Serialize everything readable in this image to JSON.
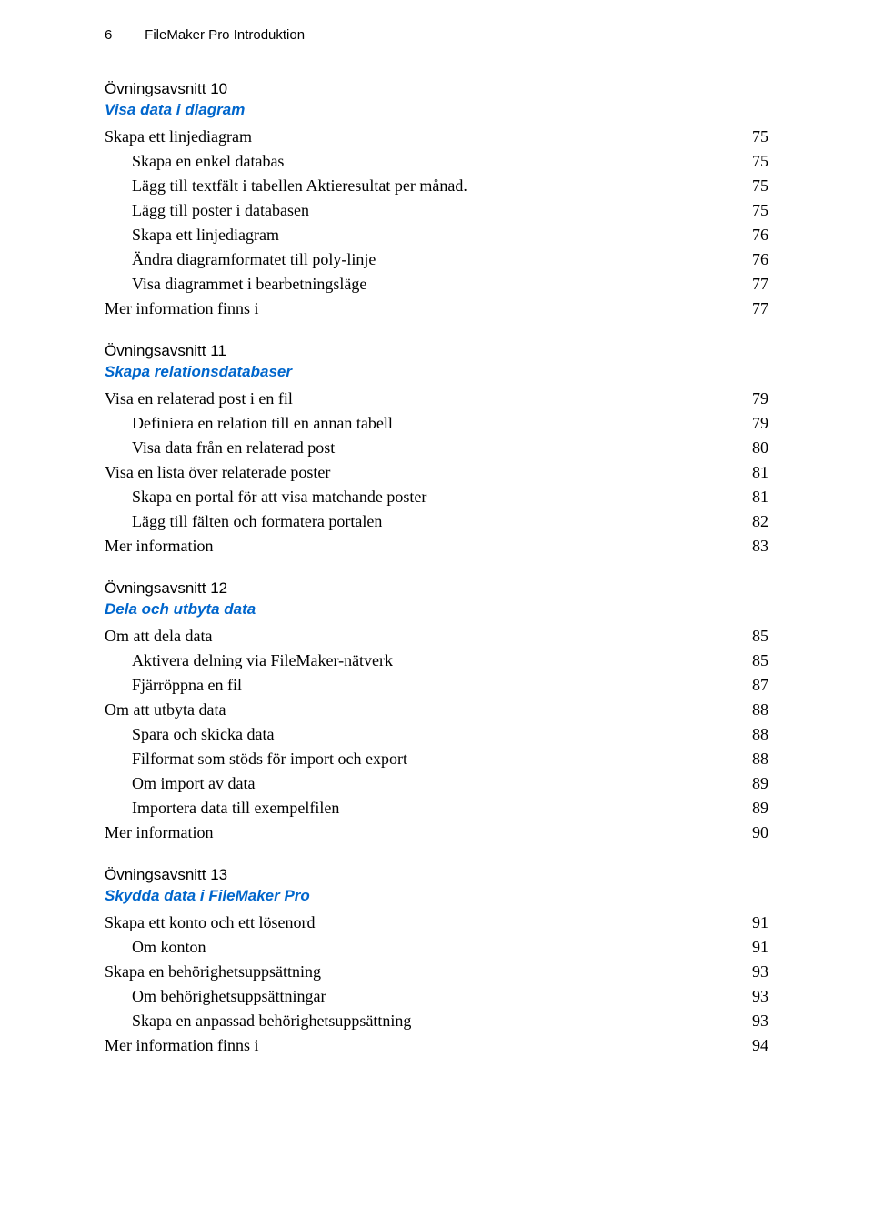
{
  "header": {
    "page_number": "6",
    "title": "FileMaker Pro Introduktion"
  },
  "sections": [
    {
      "title": "Övningsavsnitt 10",
      "link": "Visa data i diagram",
      "items": [
        {
          "label": "Skapa ett linjediagram",
          "page": "75",
          "indent": 0
        },
        {
          "label": "Skapa en enkel databas",
          "page": "75",
          "indent": 1
        },
        {
          "label": "Lägg till textfält i tabellen Aktieresultat per månad.",
          "page": "75",
          "indent": 1
        },
        {
          "label": "Lägg till poster i databasen",
          "page": "75",
          "indent": 1
        },
        {
          "label": "Skapa ett linjediagram",
          "page": "76",
          "indent": 1
        },
        {
          "label": "Ändra diagramformatet till poly-linje",
          "page": "76",
          "indent": 1
        },
        {
          "label": "Visa diagrammet i bearbetningsläge",
          "page": "77",
          "indent": 1
        },
        {
          "label": "Mer information finns i",
          "page": "77",
          "indent": 0
        }
      ]
    },
    {
      "title": "Övningsavsnitt 11",
      "link": "Skapa relationsdatabaser",
      "items": [
        {
          "label": "Visa en relaterad post i en fil",
          "page": "79",
          "indent": 0
        },
        {
          "label": "Definiera en relation till en annan tabell",
          "page": "79",
          "indent": 1
        },
        {
          "label": "Visa data från en relaterad post",
          "page": "80",
          "indent": 1
        },
        {
          "label": "Visa en lista över relaterade poster",
          "page": "81",
          "indent": 0
        },
        {
          "label": "Skapa en portal för att visa matchande poster",
          "page": "81",
          "indent": 1
        },
        {
          "label": "Lägg till fälten och formatera portalen",
          "page": "82",
          "indent": 1
        },
        {
          "label": "Mer information",
          "page": "83",
          "indent": 0
        }
      ]
    },
    {
      "title": "Övningsavsnitt 12",
      "link": "Dela och utbyta data",
      "items": [
        {
          "label": "Om att dela data",
          "page": "85",
          "indent": 0
        },
        {
          "label": "Aktivera delning via FileMaker-nätverk",
          "page": "85",
          "indent": 1
        },
        {
          "label": "Fjärröppna en fil",
          "page": "87",
          "indent": 1
        },
        {
          "label": "Om att utbyta data",
          "page": "88",
          "indent": 0
        },
        {
          "label": "Spara och skicka data",
          "page": "88",
          "indent": 1
        },
        {
          "label": "Filformat som stöds för import och export",
          "page": "88",
          "indent": 1
        },
        {
          "label": "Om import av data",
          "page": "89",
          "indent": 1
        },
        {
          "label": "Importera data till exempelfilen",
          "page": "89",
          "indent": 1
        },
        {
          "label": "Mer information",
          "page": "90",
          "indent": 0
        }
      ]
    },
    {
      "title": "Övningsavsnitt 13",
      "link": "Skydda data i FileMaker Pro",
      "items": [
        {
          "label": "Skapa ett konto och ett lösenord",
          "page": "91",
          "indent": 0
        },
        {
          "label": "Om konton",
          "page": "91",
          "indent": 1
        },
        {
          "label": "Skapa en behörighetsuppsättning",
          "page": "93",
          "indent": 0
        },
        {
          "label": "Om behörighetsuppsättningar",
          "page": "93",
          "indent": 1
        },
        {
          "label": "Skapa en anpassad behörighetsuppsättning",
          "page": "93",
          "indent": 1
        },
        {
          "label": "Mer information finns i",
          "page": "94",
          "indent": 0
        }
      ]
    }
  ]
}
